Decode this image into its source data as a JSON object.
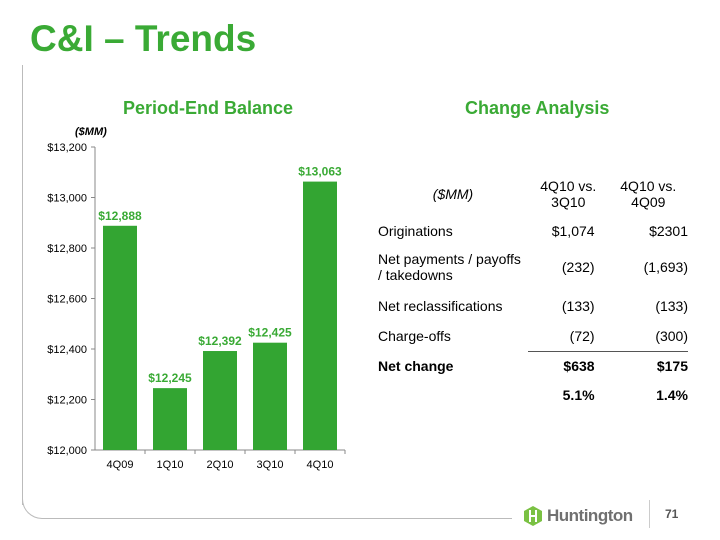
{
  "title": "C&I – Trends",
  "left_heading": "Period-End Balance",
  "right_heading": "Change Analysis",
  "page_number": "71",
  "logo_text": "Huntington",
  "colors": {
    "accent": "#3aaa35",
    "bar": "#33a532"
  },
  "chart_data": {
    "type": "bar",
    "unit_label": "($MM)",
    "categories": [
      "4Q09",
      "1Q10",
      "2Q10",
      "3Q10",
      "4Q10"
    ],
    "values": [
      12888,
      12245,
      12392,
      12425,
      13063
    ],
    "value_labels": [
      "$12,888",
      "$12,245",
      "$12,392",
      "$12,425",
      "$13,063"
    ],
    "ylim": [
      12000,
      13200
    ],
    "yticks": [
      12000,
      12200,
      12400,
      12600,
      12800,
      13000,
      13200
    ],
    "ytick_labels": [
      "$12,000",
      "$12,200",
      "$12,400",
      "$12,600",
      "$12,800",
      "$13,000",
      "$13,200"
    ]
  },
  "table": {
    "unit": "($MM)",
    "col1": [
      "4Q10 vs.",
      "3Q10"
    ],
    "col2": [
      "4Q10 vs.",
      "4Q09"
    ],
    "rows": [
      {
        "label": "Originations",
        "v1": "$1,074",
        "v2": "$2301"
      },
      {
        "label": "Net payments / payoffs / takedowns",
        "v1": "(232)",
        "v2": "(1,693)"
      },
      {
        "label": "Net reclassifications",
        "v1": "(133)",
        "v2": "(133)"
      },
      {
        "label": "Charge-offs",
        "v1": "(72)",
        "v2": "(300)"
      }
    ],
    "net": {
      "label": "Net change",
      "v1": "$638",
      "v2": "$175"
    },
    "pct": {
      "v1": "5.1%",
      "v2": "1.4%"
    }
  }
}
